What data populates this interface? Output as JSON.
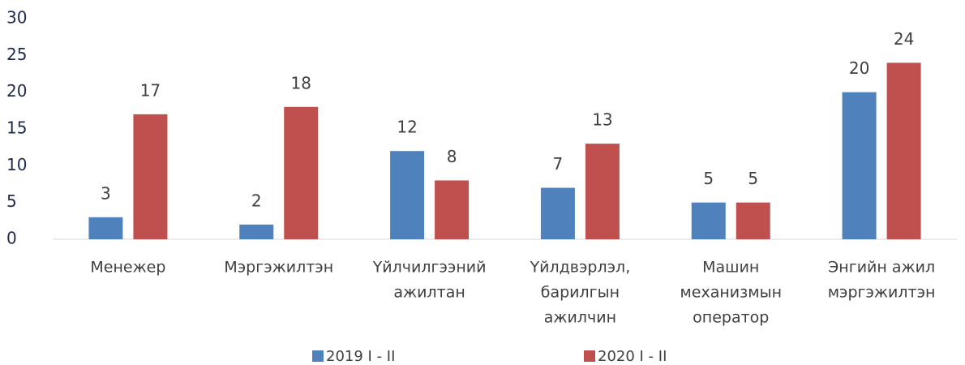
{
  "chart_data": {
    "type": "bar",
    "categories": [
      [
        "Менежер"
      ],
      [
        "Мэргэжилтэн"
      ],
      [
        "Үйлчилгээний",
        "ажилтан"
      ],
      [
        "Үйлдвэрлэл,",
        "барилгын",
        "ажилчин"
      ],
      [
        "Машин",
        "механизмын",
        "оператор"
      ],
      [
        "Энгийн ажил",
        "мэргэжилтэн"
      ]
    ],
    "series": [
      {
        "name": "2019 I - II",
        "color": "#4f81bd",
        "values": [
          3,
          2,
          12,
          7,
          5,
          20
        ]
      },
      {
        "name": "2020 I - II",
        "color": "#c0504d",
        "values": [
          17,
          18,
          8,
          13,
          5,
          24
        ]
      }
    ],
    "ylim": [
      0,
      30
    ],
    "yticks": [
      0,
      5,
      10,
      15,
      20,
      25,
      30
    ],
    "grid": false,
    "legend": "bottom"
  }
}
